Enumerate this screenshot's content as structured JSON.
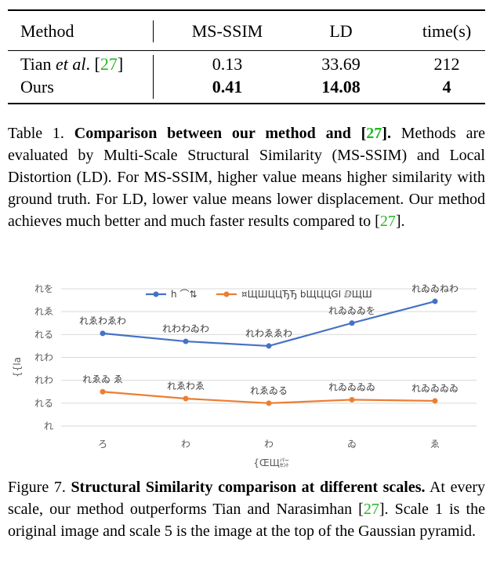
{
  "table": {
    "headers": [
      "Method",
      "MS-SSIM",
      "LD",
      "time(s)"
    ],
    "rows": [
      {
        "method_prefix": "Tian ",
        "method_italic": "et al",
        "method_suffix": ". [",
        "cite": "27",
        "method_close": "]",
        "ms_ssim": "0.13",
        "ld": "33.69",
        "time": "212"
      },
      {
        "method": "Ours",
        "ms_ssim": "0.41",
        "ld": "14.08",
        "time": "4"
      }
    ]
  },
  "table_caption": {
    "label": "Table 1. ",
    "bold_text": "Comparison between our method and [",
    "bold_cite": "27",
    "bold_end": "].",
    "body_1": " Methods are evaluated by Multi-Scale Structural Similarity (MS-SSIM) and Local Distortion (LD). For MS-SSIM, higher value means higher similarity with ground truth.  For LD, lower value means lower displacement. Our method achieves much better and much faster results compared to [",
    "cite": "27",
    "body_2": "]."
  },
  "figure_caption": {
    "label": "Figure 7. ",
    "bold_text": "Structural Similarity comparison at different scales.",
    "body_1": " At every scale, our method outperforms Tian and Narasimhan [",
    "cite": "27",
    "body_2": "]. Scale 1 is the original image and scale 5 is the image at the top of the Gaussian pyramid."
  },
  "chart_data": {
    "type": "line",
    "x_tick_labels": [
      "ろ",
      "わ",
      "わ",
      "ゐ",
      "ゑ"
    ],
    "y_tick_labels": [
      "れ",
      "れる",
      "れわ",
      "れわ",
      "れる",
      "れゑ",
      "れを"
    ],
    "y_range": [
      0,
      6
    ],
    "xlabel": "{ŒЩ㌫",
    "ylabel": "{{la",
    "grid": true,
    "legend_position": "top",
    "series": [
      {
        "name": "h ⌒⇅",
        "color": "#4472c4",
        "values": [
          4.05,
          3.7,
          3.5,
          4.5,
          5.45
        ],
        "data_labels": [
          "れゑわゑわ",
          "れわわゐわ",
          "れわゑゑわ",
          "れゐゐゐを",
          "れゐゐねわ"
        ]
      },
      {
        "name": "¤ЩШЦЦЂЂ bЩЦЦGI ⅅЩШ",
        "color": "#ed7d31",
        "values": [
          1.5,
          1.2,
          1.0,
          1.15,
          1.1
        ],
        "data_labels": [
          "れゑゐ ゑ",
          "れゑわゑ",
          "れゑゐる",
          "れゐゐゐゐ",
          "れゐゐゐゐ"
        ]
      }
    ]
  }
}
